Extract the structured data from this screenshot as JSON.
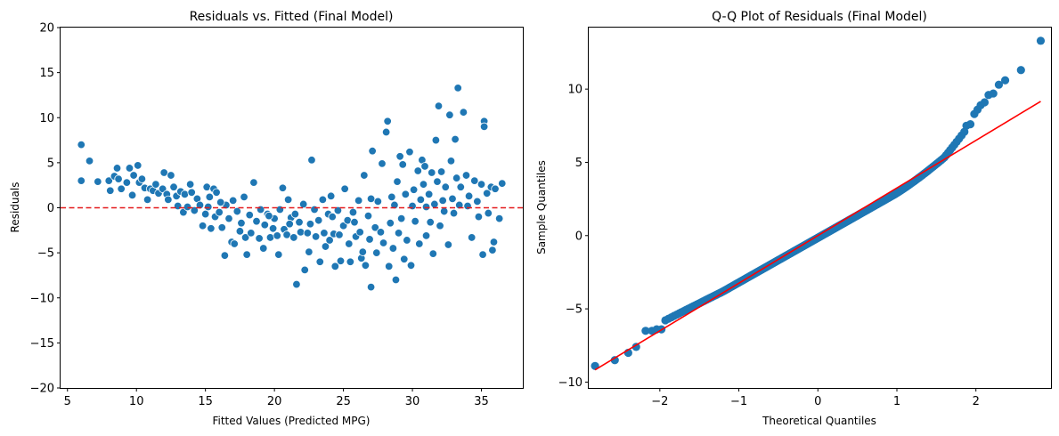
{
  "chart_data": [
    {
      "type": "scatter",
      "title": "Residuals vs. Fitted (Final Model)",
      "xlabel": "Fitted Values (Predicted MPG)",
      "ylabel": "Residuals",
      "xlim": [
        4.5,
        38
      ],
      "ylim": [
        -20,
        20
      ],
      "x_ticks": [
        5,
        10,
        15,
        20,
        25,
        30,
        35
      ],
      "y_ticks": [
        -20,
        -15,
        -10,
        -5,
        0,
        5,
        10,
        15,
        20
      ],
      "reference_line": {
        "y": 0,
        "style": "dashed",
        "color": "#e41a1c"
      },
      "marker_color": "#1f77b4",
      "points": [
        [
          6.0,
          7.0
        ],
        [
          6.0,
          3.0
        ],
        [
          6.6,
          5.2
        ],
        [
          7.2,
          2.9
        ],
        [
          8.0,
          3.0
        ],
        [
          8.1,
          1.9
        ],
        [
          8.4,
          3.5
        ],
        [
          8.6,
          4.4
        ],
        [
          8.7,
          3.2
        ],
        [
          8.9,
          2.1
        ],
        [
          9.3,
          2.8
        ],
        [
          9.5,
          4.4
        ],
        [
          9.7,
          1.4
        ],
        [
          9.8,
          3.6
        ],
        [
          10.1,
          4.7
        ],
        [
          10.2,
          2.8
        ],
        [
          10.4,
          3.2
        ],
        [
          10.6,
          2.2
        ],
        [
          10.8,
          0.9
        ],
        [
          11.0,
          2.1
        ],
        [
          11.2,
          1.9
        ],
        [
          11.4,
          2.6
        ],
        [
          11.6,
          1.6
        ],
        [
          11.9,
          2.1
        ],
        [
          12.0,
          3.9
        ],
        [
          12.2,
          1.5
        ],
        [
          12.3,
          0.9
        ],
        [
          12.5,
          3.6
        ],
        [
          12.7,
          2.3
        ],
        [
          12.9,
          1.3
        ],
        [
          13.0,
          0.2
        ],
        [
          13.2,
          1.8
        ],
        [
          13.4,
          -0.5
        ],
        [
          13.5,
          1.5
        ],
        [
          13.7,
          0.1
        ],
        [
          13.9,
          2.6
        ],
        [
          14.0,
          1.7
        ],
        [
          14.2,
          -0.3
        ],
        [
          14.4,
          1.0
        ],
        [
          14.6,
          0.3
        ],
        [
          14.8,
          -2.0
        ],
        [
          15.0,
          -0.7
        ],
        [
          15.1,
          2.3
        ],
        [
          15.2,
          0.1
        ],
        [
          15.3,
          1.2
        ],
        [
          15.4,
          -2.3
        ],
        [
          15.6,
          2.1
        ],
        [
          15.7,
          -1.0
        ],
        [
          15.8,
          1.7
        ],
        [
          16.0,
          -0.5
        ],
        [
          16.2,
          -2.2
        ],
        [
          16.4,
          -5.3
        ],
        [
          16.5,
          0.3
        ],
        [
          16.7,
          -1.2
        ],
        [
          16.9,
          -3.8
        ],
        [
          17.0,
          0.8
        ],
        [
          17.1,
          -4.0
        ],
        [
          17.3,
          -0.4
        ],
        [
          17.5,
          -2.6
        ],
        [
          17.6,
          -1.7
        ],
        [
          17.8,
          1.2
        ],
        [
          17.9,
          -3.3
        ],
        [
          18.0,
          -5.2
        ],
        [
          18.2,
          -0.8
        ],
        [
          18.3,
          -2.8
        ],
        [
          18.5,
          2.8
        ],
        [
          18.7,
          -1.5
        ],
        [
          18.9,
          -3.4
        ],
        [
          19.0,
          -0.2
        ],
        [
          19.2,
          -4.5
        ],
        [
          19.3,
          -1.9
        ],
        [
          19.5,
          -0.7
        ],
        [
          19.7,
          -3.3
        ],
        [
          19.9,
          -2.3
        ],
        [
          20.0,
          -1.2
        ],
        [
          20.2,
          -3.1
        ],
        [
          20.3,
          -5.2
        ],
        [
          20.4,
          -0.2
        ],
        [
          20.6,
          2.2
        ],
        [
          20.7,
          -2.4
        ],
        [
          20.9,
          -3.0
        ],
        [
          21.0,
          0.9
        ],
        [
          21.2,
          -1.1
        ],
        [
          21.4,
          -3.3
        ],
        [
          21.5,
          -0.7
        ],
        [
          21.6,
          -8.5
        ],
        [
          21.8,
          -1.6
        ],
        [
          21.9,
          -2.7
        ],
        [
          22.1,
          0.4
        ],
        [
          22.2,
          -6.9
        ],
        [
          22.4,
          -2.8
        ],
        [
          22.5,
          -4.9
        ],
        [
          22.6,
          -1.8
        ],
        [
          22.7,
          5.3
        ],
        [
          22.9,
          -0.2
        ],
        [
          23.0,
          -3.2
        ],
        [
          23.2,
          -1.4
        ],
        [
          23.3,
          -6.0
        ],
        [
          23.5,
          0.9
        ],
        [
          23.6,
          -2.8
        ],
        [
          23.7,
          -4.3
        ],
        [
          23.9,
          -0.7
        ],
        [
          24.0,
          -3.6
        ],
        [
          24.1,
          1.3
        ],
        [
          24.3,
          -2.9
        ],
        [
          24.4,
          -6.5
        ],
        [
          24.6,
          -0.3
        ],
        [
          24.7,
          -3.0
        ],
        [
          24.8,
          -5.9
        ],
        [
          25.0,
          -2.0
        ],
        [
          25.1,
          2.1
        ],
        [
          25.3,
          -1.4
        ],
        [
          25.4,
          -4.0
        ],
        [
          25.5,
          -6.0
        ],
        [
          25.7,
          -0.5
        ],
        [
          25.8,
          -1.6
        ],
        [
          25.9,
          -3.2
        ],
        [
          26.1,
          0.8
        ],
        [
          26.2,
          -2.7
        ],
        [
          26.3,
          -5.6
        ],
        [
          26.4,
          -4.9
        ],
        [
          26.5,
          3.6
        ],
        [
          26.6,
          -6.4
        ],
        [
          26.8,
          -0.9
        ],
        [
          26.9,
          -3.5
        ],
        [
          27.0,
          -8.8
        ],
        [
          27.1,
          6.3
        ],
        [
          27.3,
          -2.2
        ],
        [
          27.4,
          -5.0
        ],
        [
          27.5,
          0.7
        ],
        [
          27.7,
          -2.7
        ],
        [
          27.8,
          4.9
        ],
        [
          27.9,
          -3.9
        ],
        [
          28.1,
          8.4
        ],
        [
          28.2,
          9.6
        ],
        [
          28.3,
          -6.5
        ],
        [
          28.4,
          -1.7
        ],
        [
          28.5,
          1.2
        ],
        [
          28.6,
          -4.5
        ],
        [
          28.7,
          0.3
        ],
        [
          28.8,
          -8.0
        ],
        [
          28.9,
          2.9
        ],
        [
          29.0,
          -2.8
        ],
        [
          29.1,
          5.7
        ],
        [
          29.2,
          -1.2
        ],
        [
          29.3,
          4.8
        ],
        [
          29.4,
          -5.7
        ],
        [
          29.5,
          1.5
        ],
        [
          29.6,
          -3.6
        ],
        [
          29.8,
          6.2
        ],
        [
          29.9,
          -6.4
        ],
        [
          30.0,
          0.2
        ],
        [
          30.1,
          2.0
        ],
        [
          30.2,
          -1.5
        ],
        [
          30.4,
          4.1
        ],
        [
          30.5,
          -4.0
        ],
        [
          30.6,
          0.9
        ],
        [
          30.7,
          5.3
        ],
        [
          30.8,
          2.6
        ],
        [
          30.9,
          4.6
        ],
        [
          31.0,
          -3.1
        ],
        [
          31.2,
          1.5
        ],
        [
          31.3,
          -1.6
        ],
        [
          31.4,
          3.9
        ],
        [
          31.5,
          -5.1
        ],
        [
          31.6,
          0.4
        ],
        [
          31.7,
          7.5
        ],
        [
          31.8,
          2.9
        ],
        [
          31.9,
          11.3
        ],
        [
          32.0,
          -2.0
        ],
        [
          32.1,
          4.0
        ],
        [
          32.2,
          0.8
        ],
        [
          32.3,
          -0.4
        ],
        [
          32.4,
          2.3
        ],
        [
          32.6,
          -4.1
        ],
        [
          32.7,
          10.3
        ],
        [
          32.8,
          5.2
        ],
        [
          32.9,
          1.0
        ],
        [
          33.0,
          -0.6
        ],
        [
          33.1,
          7.6
        ],
        [
          33.2,
          3.3
        ],
        [
          33.3,
          13.3
        ],
        [
          33.4,
          0.3
        ],
        [
          33.5,
          2.3
        ],
        [
          33.7,
          10.6
        ],
        [
          33.9,
          3.6
        ],
        [
          34.0,
          0.2
        ],
        [
          34.1,
          1.3
        ],
        [
          34.3,
          -3.3
        ],
        [
          34.5,
          3.0
        ],
        [
          34.7,
          0.7
        ],
        [
          34.8,
          -1.0
        ],
        [
          35.0,
          2.6
        ],
        [
          35.1,
          -5.2
        ],
        [
          35.2,
          9.6
        ],
        [
          35.2,
          9.0
        ],
        [
          35.4,
          1.6
        ],
        [
          35.5,
          -0.6
        ],
        [
          35.7,
          2.3
        ],
        [
          35.8,
          -4.7
        ],
        [
          35.9,
          -3.8
        ],
        [
          36.0,
          2.1
        ],
        [
          36.3,
          -1.2
        ],
        [
          36.5,
          2.7
        ],
        [
          31.0,
          0.1
        ],
        [
          27.0,
          1.0
        ],
        [
          24.2,
          -1.0
        ],
        [
          21.1,
          -1.8
        ],
        [
          19.6,
          -0.9
        ],
        [
          16.1,
          0.6
        ]
      ]
    },
    {
      "type": "scatter",
      "title": "Q-Q Plot of Residuals (Final Model)",
      "xlabel": "Theoretical Quantiles",
      "ylabel": "Sample Quantiles",
      "xlim": [
        -2.9,
        2.95
      ],
      "ylim": [
        -10.4,
        14.2
      ],
      "x_ticks": [
        -2,
        -1,
        0,
        1,
        2
      ],
      "y_ticks": [
        -10,
        -5,
        0,
        5,
        10
      ],
      "reference_line": {
        "slope": 3.25,
        "intercept": 0.0,
        "from_x": -2.82,
        "to_x": 2.82,
        "color": "#ff0000"
      },
      "marker_color": "#1f77b4",
      "upper_tail": [
        [
          1.88,
          7.5
        ],
        [
          1.93,
          7.6
        ],
        [
          1.98,
          8.3
        ],
        [
          2.02,
          8.6
        ],
        [
          2.06,
          8.9
        ],
        [
          2.11,
          9.1
        ],
        [
          2.16,
          9.6
        ],
        [
          2.22,
          9.7
        ],
        [
          2.29,
          10.3
        ],
        [
          2.37,
          10.6
        ],
        [
          2.57,
          11.3
        ],
        [
          2.82,
          13.3
        ]
      ],
      "lower_tail": [
        [
          -2.82,
          -8.9
        ],
        [
          -2.57,
          -8.5
        ],
        [
          -2.4,
          -8.0
        ],
        [
          -2.3,
          -7.6
        ],
        [
          -2.18,
          -6.5
        ],
        [
          -2.1,
          -6.5
        ],
        [
          -2.04,
          -6.4
        ],
        [
          -1.98,
          -6.4
        ]
      ]
    }
  ]
}
